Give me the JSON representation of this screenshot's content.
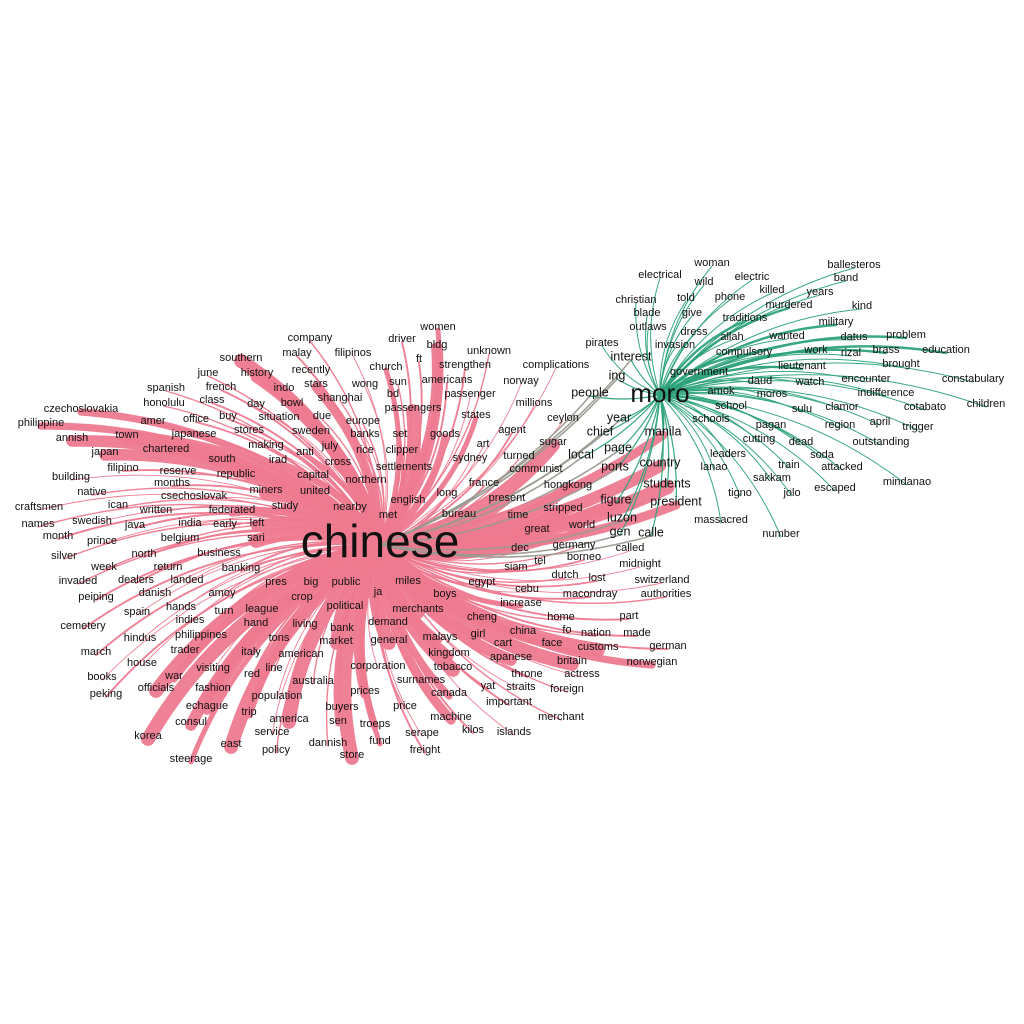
{
  "colors": {
    "chinese": "#ee7a90",
    "moro": "#2ea37a",
    "shared": "#9a9a90",
    "text": "#111111"
  },
  "hubs": [
    {
      "id": "chinese",
      "label": "chinese"
    },
    {
      "id": "moro",
      "label": "moro"
    }
  ],
  "shared_words": [
    "people",
    "chief",
    "page",
    "local",
    "year",
    "ing",
    "manila",
    "country",
    "students",
    "president",
    "figure",
    "luzon",
    "gen",
    "calle",
    "ports",
    "interest"
  ],
  "moro_words": [
    "ballesteros",
    "woman",
    "electrical",
    "wild",
    "electric",
    "band",
    "killed",
    "years",
    "christian",
    "told",
    "phone",
    "murdered",
    "kind",
    "blade",
    "give",
    "traditions",
    "military",
    "outlaws",
    "dress",
    "allah",
    "wanted",
    "datus",
    "problem",
    "pirates",
    "invasion",
    "compulsory",
    "work",
    "rizal",
    "brass",
    "education",
    "lieutenant",
    "brought",
    "government",
    "daud",
    "watch",
    "encounter",
    "constabulary",
    "amok",
    "moros",
    "indifference",
    "school",
    "sulu",
    "clamor",
    "cotabato",
    "children",
    "schools",
    "april",
    "pagan",
    "region",
    "trigger",
    "cutting",
    "dead",
    "outstanding",
    "leaders",
    "soda",
    "lanao",
    "train",
    "attacked",
    "sakkam",
    "tigno",
    "jolo",
    "escaped",
    "mindanao",
    "massacred",
    "number"
  ],
  "chinese_words": [
    "women",
    "company",
    "driver",
    "bldg",
    "southern",
    "malay",
    "filipinos",
    "unknown",
    "ft",
    "recently",
    "church",
    "strengthen",
    "complications",
    "june",
    "history",
    "wong",
    "sun",
    "americans",
    "norway",
    "spanish",
    "french",
    "indo",
    "stars",
    "bd",
    "passenger",
    "honolulu",
    "class",
    "bowl",
    "shanghai",
    "passengers",
    "millions",
    "czechoslovakia",
    "buy",
    "day",
    "due",
    "states",
    "philippine",
    "amer",
    "office",
    "situation",
    "europe",
    "set",
    "ceylon",
    "stores",
    "sweden",
    "banks",
    "goods",
    "agent",
    "annish",
    "town",
    "japanese",
    "making",
    "july",
    "clipper",
    "sugar",
    "chartered",
    "rice",
    "art",
    "japan",
    "south",
    "anti",
    "irad",
    "cross",
    "sydney",
    "turned",
    "filipino",
    "reserve",
    "republic",
    "settlements",
    "communist",
    "capital",
    "northern",
    "building",
    "native",
    "months",
    "csechoslovak",
    "united",
    "france",
    "hongkong",
    "miners",
    "long",
    "present",
    "ican",
    "english",
    "craftsmen",
    "written",
    "federated",
    "study",
    "nearby",
    "stripped",
    "swedish",
    "met",
    "bureau",
    "time",
    "names",
    "java",
    "india",
    "early",
    "left",
    "great",
    "world",
    "month",
    "prince",
    "belgium",
    "sari",
    "dec",
    "germany",
    "borneo",
    "called",
    "silver",
    "north",
    "business",
    "siam",
    "tel",
    "midnight",
    "week",
    "banking",
    "return",
    "dutch",
    "lost",
    "switzerland",
    "invaded",
    "dealers",
    "landed",
    "pres",
    "big",
    "public",
    "miles",
    "egypt",
    "cebu",
    "authorities",
    "peiping",
    "danish",
    "amoy",
    "crop",
    "ja",
    "boys",
    "macondray",
    "hands",
    "league",
    "increase",
    "spain",
    "turn",
    "political",
    "merchants",
    "home",
    "part",
    "indies",
    "cheng",
    "cemetery",
    "hand",
    "living",
    "demand",
    "fo",
    "nation",
    "made",
    "hindus",
    "philippines",
    "tons",
    "bank",
    "china",
    "march",
    "trader",
    "market",
    "general",
    "malays",
    "girl",
    "cart",
    "face",
    "customs",
    "german",
    "american",
    "kingdom",
    "apanese",
    "house",
    "italy",
    "norwegian",
    "visiting",
    "line",
    "britain",
    "books",
    "war",
    "red",
    "corporation",
    "tobacco",
    "throne",
    "actress",
    "fashion",
    "surnames",
    "officials",
    "australia",
    "yat",
    "straits",
    "foreign",
    "peking",
    "population",
    "canada",
    "prices",
    "echague",
    "buyers",
    "important",
    "trip",
    "price",
    "consul",
    "america",
    "sen",
    "troeps",
    "machine",
    "merchant",
    "korea",
    "service",
    "dannish",
    "kilos",
    "islands",
    "east",
    "fund",
    "serape",
    "policy",
    "freight",
    "store",
    "steerage"
  ],
  "all_labels": {
    "chinese": "chinese",
    "moro": "moro",
    "people": "people",
    "chief": "chief",
    "page": "page",
    "local": "local",
    "year": "year",
    "ing": "ing",
    "manila": "manila",
    "country": "country",
    "students": "students",
    "president": "president",
    "figure": "figure",
    "luzon": "luzon",
    "gen": "gen",
    "calle": "calle",
    "ports": "ports",
    "interest": "interest",
    "ballesteros": "ballesteros",
    "woman": "woman",
    "electrical": "electrical",
    "wild": "wild",
    "electric": "electric",
    "band": "band",
    "killed": "killed",
    "years": "years",
    "christian": "christian",
    "told": "told",
    "phone": "phone",
    "murdered": "murdered",
    "kind": "kind",
    "blade": "blade",
    "give": "give",
    "traditions": "traditions",
    "military": "military",
    "outlaws": "outlaws",
    "dress": "dress",
    "allah": "allah",
    "wanted": "wanted",
    "datus": "datus",
    "problem": "problem",
    "pirates": "pirates",
    "invasion": "invasion",
    "compulsory": "compulsory",
    "work": "work",
    "rizal": "rizal",
    "brass": "brass",
    "education": "education",
    "lieutenant": "lieutenant",
    "brought": "brought",
    "government": "government",
    "daud": "daud",
    "watch": "watch",
    "encounter": "encounter",
    "constabulary": "constabulary",
    "amok": "amok",
    "moros": "moros",
    "indifference": "indifference",
    "school": "school",
    "sulu": "sulu",
    "clamor": "clamor",
    "cotabato": "cotabato",
    "children": "children",
    "schools": "schools",
    "april": "april",
    "pagan": "pagan",
    "region": "region",
    "trigger": "trigger",
    "cutting": "cutting",
    "dead": "dead",
    "outstanding": "outstanding",
    "leaders": "leaders",
    "soda": "soda",
    "lanao": "lanao",
    "train": "train",
    "attacked": "attacked",
    "sakkam": "sakkam",
    "tigno": "tigno",
    "jolo": "jolo",
    "escaped": "escaped",
    "mindanao": "mindanao",
    "massacred": "massacred",
    "number": "number"
  }
}
